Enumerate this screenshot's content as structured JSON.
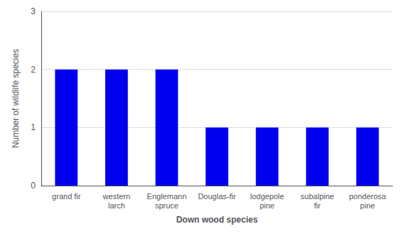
{
  "chart_data": {
    "type": "bar",
    "categories": [
      "grand fir",
      "western\nlarch",
      "Englemann\nspruce",
      "Douglas-fir",
      "lodgepole\npine",
      "subalpine\nfir",
      "ponderosa\npine"
    ],
    "values": [
      2,
      2,
      2,
      1,
      1,
      1,
      1
    ],
    "color": "#0000ee",
    "xlabel": "Down wood species",
    "ylabel": "Number of wildlife species",
    "ylim": [
      0,
      3
    ],
    "yticks": [
      0,
      1,
      2,
      3
    ],
    "grid": true
  }
}
